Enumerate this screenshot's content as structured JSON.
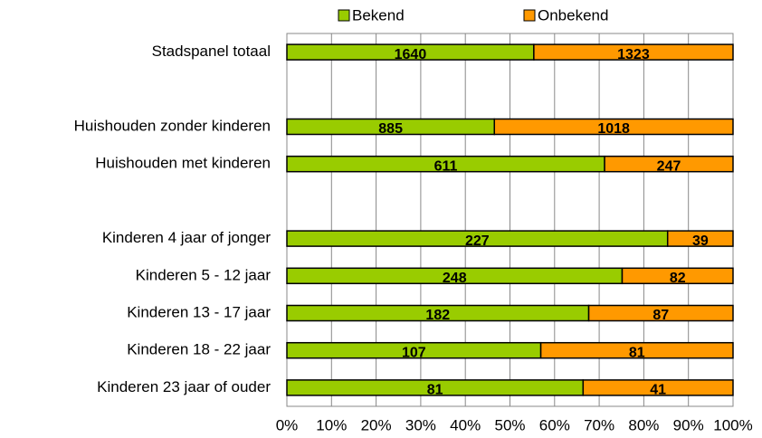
{
  "chart_data": {
    "type": "bar",
    "orientation": "horizontal",
    "stacking": "percent",
    "categories": [
      "Stadspanel totaal",
      null,
      "Huishouden zonder kinderen",
      "Huishouden met kinderen",
      null,
      "Kinderen 4 jaar of jonger",
      "Kinderen 5 - 12 jaar",
      "Kinderen 13 - 17 jaar",
      "Kinderen 18 - 22 jaar",
      "Kinderen 23 jaar of ouder"
    ],
    "series": [
      {
        "name": "Bekend",
        "color": "#99cc00",
        "values": [
          1640,
          null,
          885,
          611,
          null,
          227,
          248,
          182,
          107,
          81
        ]
      },
      {
        "name": "Onbekend",
        "color": "#ff9900",
        "values": [
          1323,
          null,
          1018,
          247,
          null,
          39,
          82,
          87,
          81,
          41
        ]
      }
    ],
    "xlim": [
      0,
      100
    ],
    "xticks": [
      {
        "value": 0,
        "label": "0%"
      },
      {
        "value": 10,
        "label": "10%"
      },
      {
        "value": 20,
        "label": "20%"
      },
      {
        "value": 30,
        "label": "30%"
      },
      {
        "value": 40,
        "label": "40%"
      },
      {
        "value": 50,
        "label": "50%"
      },
      {
        "value": 60,
        "label": "60%"
      },
      {
        "value": 70,
        "label": "70%"
      },
      {
        "value": 80,
        "label": "80%"
      },
      {
        "value": 90,
        "label": "90%"
      },
      {
        "value": 100,
        "label": "100%"
      }
    ],
    "grid": true,
    "legend": "top"
  }
}
